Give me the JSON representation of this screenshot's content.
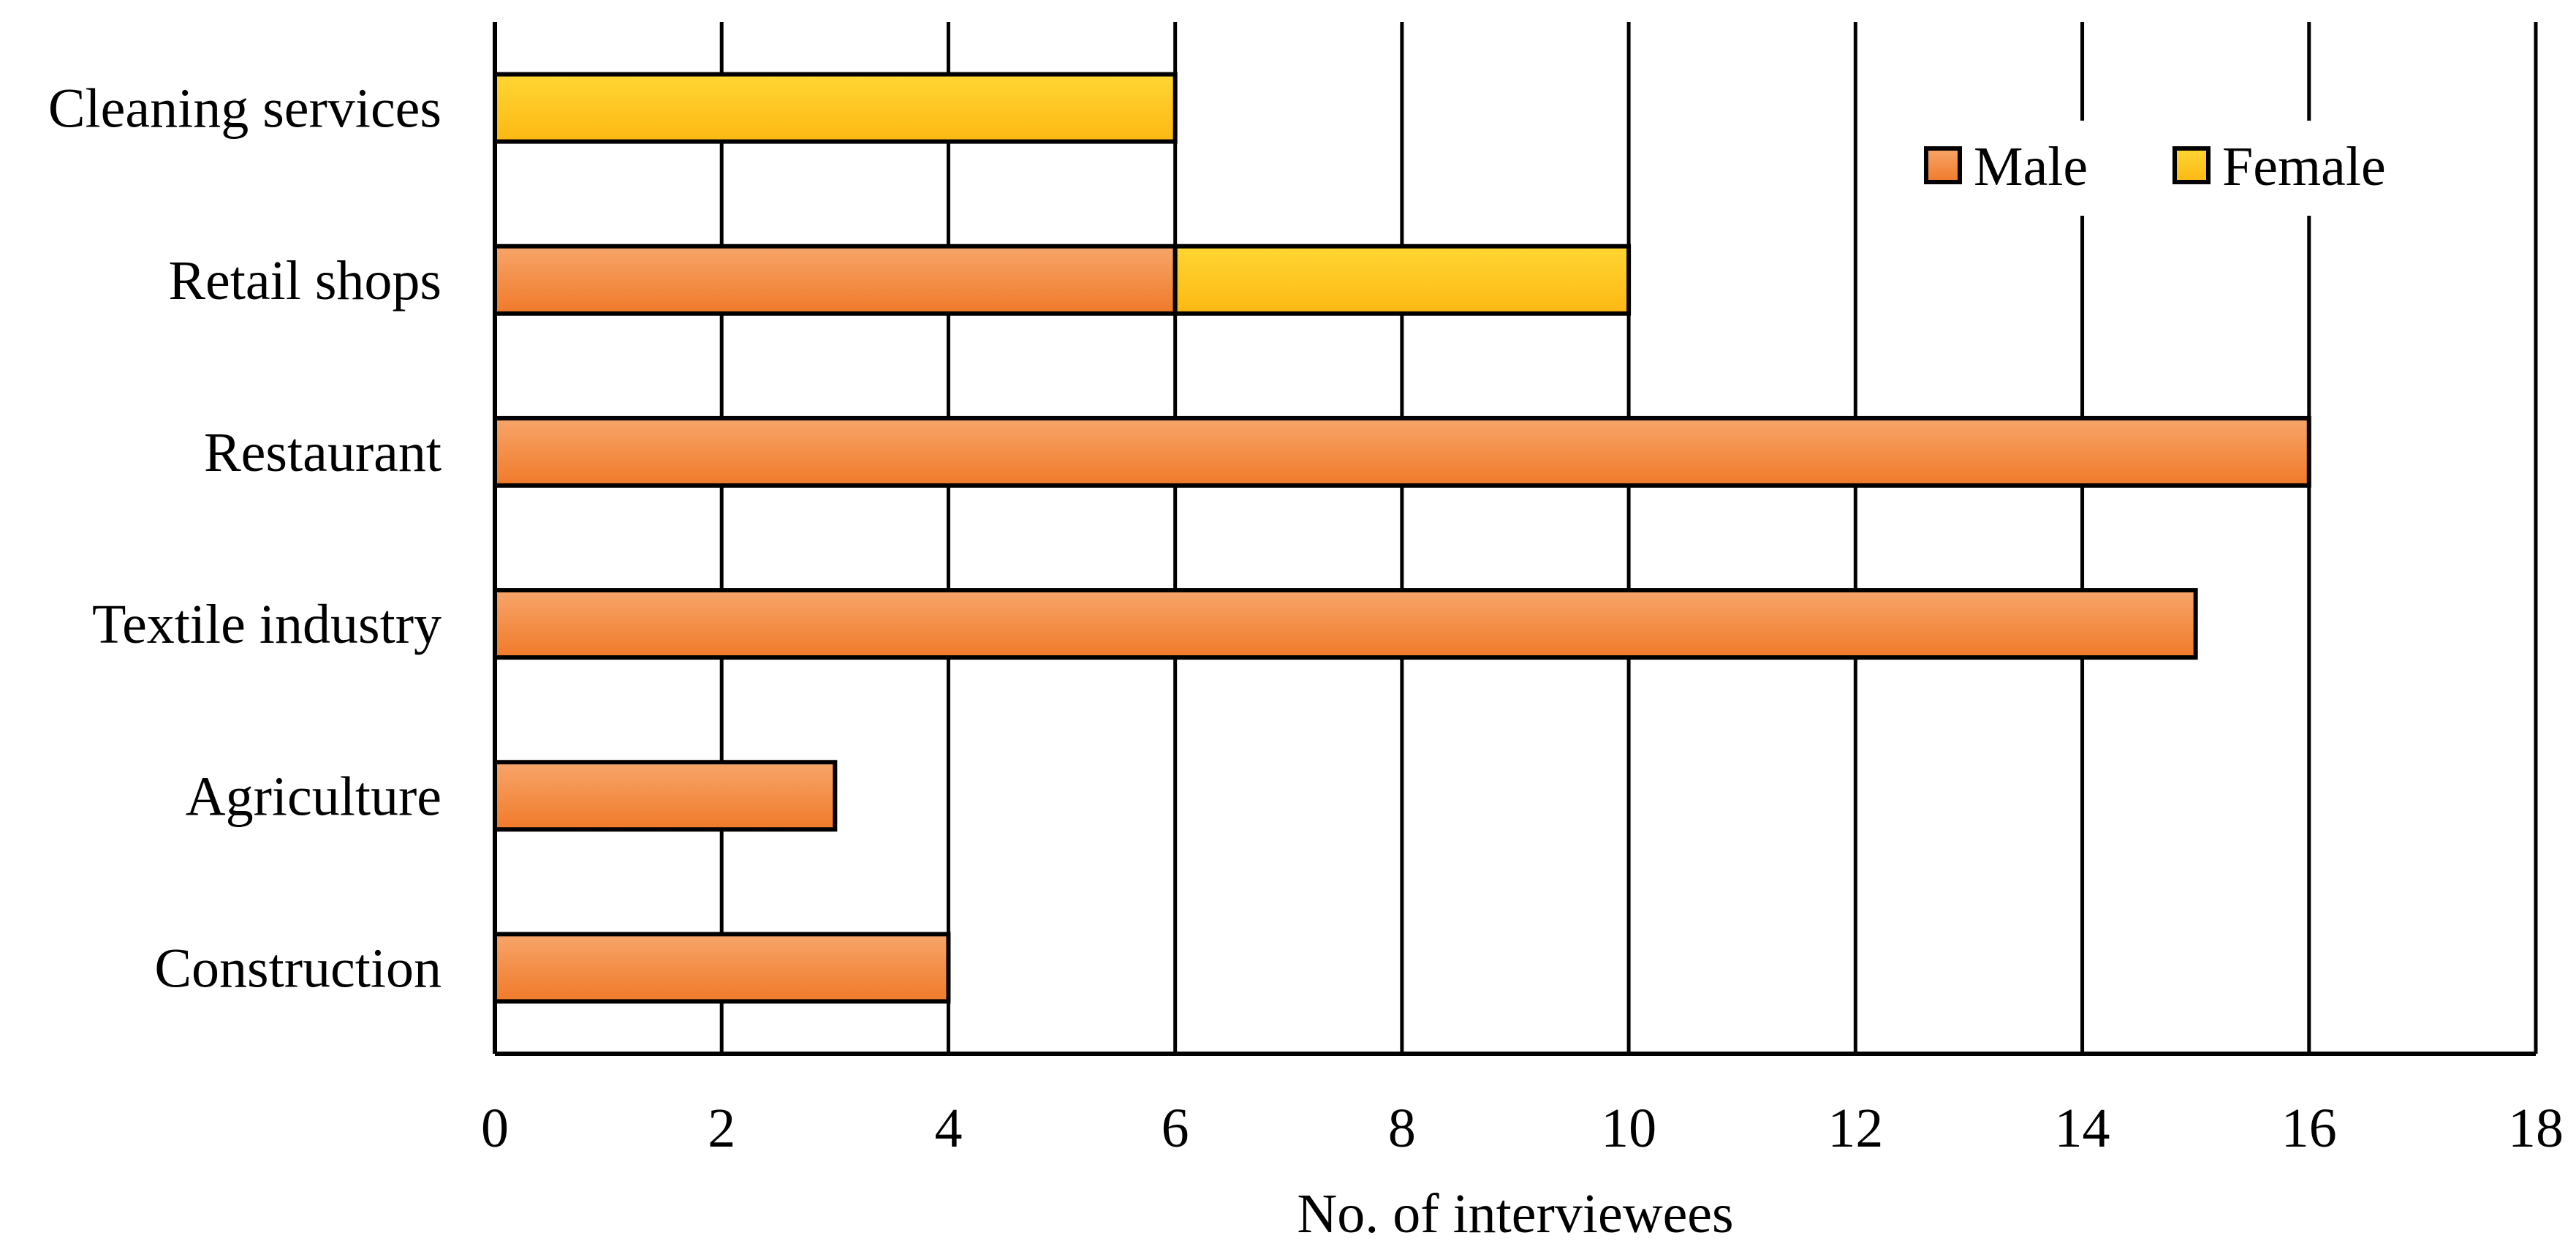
{
  "chart_data": {
    "type": "bar",
    "orientation": "horizontal",
    "stacked": true,
    "categories": [
      "Cleaning services",
      "Retail shops",
      "Restaurant",
      "Textile industry",
      "Agriculture",
      "Construction"
    ],
    "series": [
      {
        "name": "Male",
        "values": [
          0,
          6,
          16,
          15,
          3,
          4
        ],
        "color": "#F07A2A",
        "color_light": "#F7A56A"
      },
      {
        "name": "Female",
        "values": [
          6,
          4,
          0,
          0,
          0,
          0
        ],
        "color": "#FDB813",
        "color_light": "#FFD633"
      }
    ],
    "xlabel": "No. of interviewees",
    "ylabel": "",
    "xlim": [
      0,
      18
    ],
    "xticks": [
      0,
      2,
      4,
      6,
      8,
      10,
      12,
      14,
      16,
      18
    ],
    "grid": "vertical",
    "legend_position": "top-right"
  }
}
